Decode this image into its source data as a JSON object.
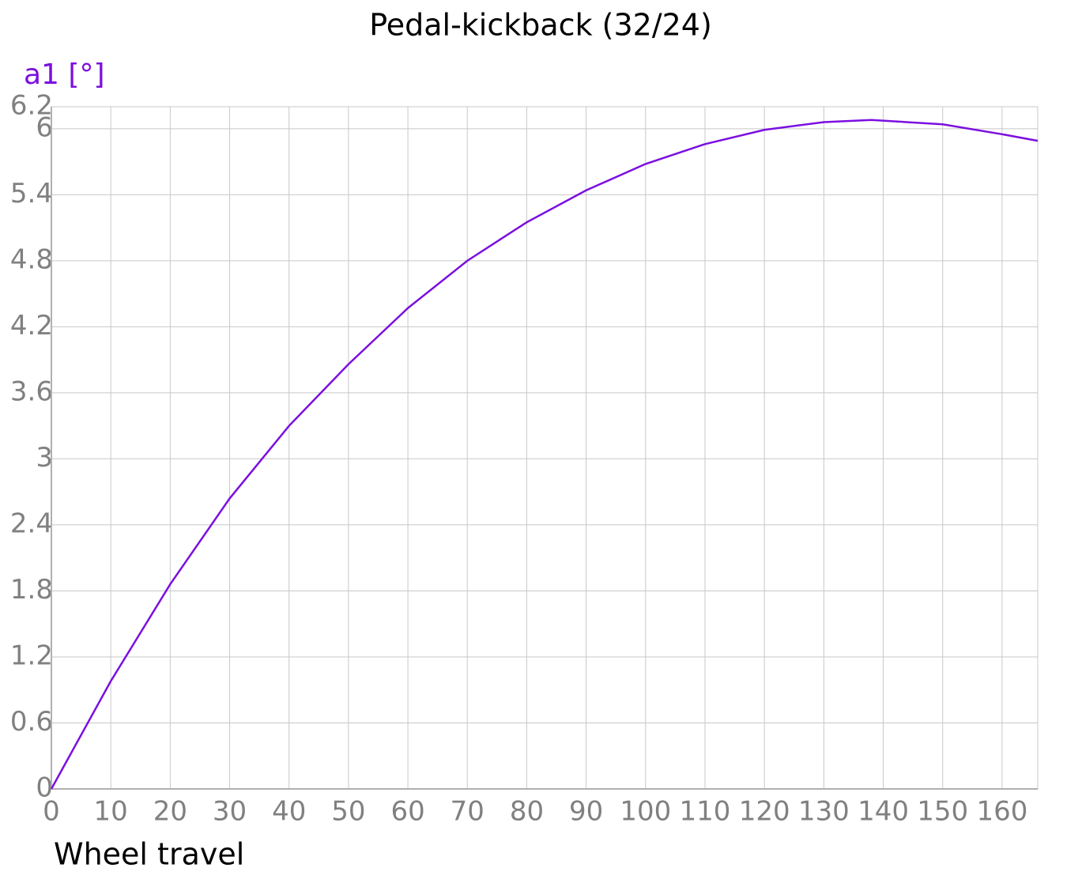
{
  "chart_data": {
    "type": "line",
    "title": "Pedal-kickback (32/24)",
    "x_label": "Wheel travel",
    "y_label": "a1 [°]",
    "x": [
      0,
      10,
      20,
      30,
      40,
      50,
      60,
      70,
      80,
      90,
      100,
      110,
      120,
      130,
      138,
      150,
      160,
      166
    ],
    "series": [
      {
        "name": "a1",
        "color": "#7b0fe0",
        "values": [
          0,
          0.98,
          1.86,
          2.64,
          3.3,
          3.86,
          4.37,
          4.8,
          5.15,
          5.44,
          5.68,
          5.86,
          5.99,
          6.06,
          6.08,
          6.04,
          5.95,
          5.89
        ]
      }
    ],
    "xlim": [
      0,
      166
    ],
    "ylim": [
      0,
      6.2
    ],
    "xticks": [
      0,
      10,
      20,
      30,
      40,
      50,
      60,
      70,
      80,
      90,
      100,
      110,
      120,
      130,
      140,
      150,
      160
    ],
    "yticks": [
      0,
      0.6,
      1.2,
      1.8,
      2.4,
      3,
      3.6,
      4.2,
      4.8,
      5.4,
      6,
      6.2
    ],
    "grid": true
  }
}
